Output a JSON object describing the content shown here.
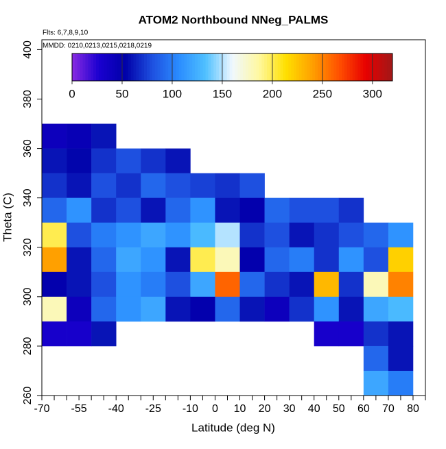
{
  "chart_data": {
    "type": "heatmap",
    "title": "ATOM2 Northbound NNeg_PALMS",
    "annotations": [
      "Flts: 6,7,8,9,10",
      "MMDD: 0210,0213,0215,0218,0219"
    ],
    "xlabel": "Latitude (deg N)",
    "ylabel": "Theta (C)",
    "xlim": [
      -70,
      85
    ],
    "ylim": [
      260,
      404
    ],
    "xticks": [
      -70,
      -55,
      -40,
      -25,
      -10,
      0,
      10,
      20,
      30,
      40,
      50,
      60,
      70,
      80
    ],
    "xminorticks": [
      -65,
      -60,
      -50,
      -45,
      -35,
      -30,
      -20,
      -15,
      -5,
      5,
      15,
      25,
      35,
      45,
      55,
      65,
      75,
      85
    ],
    "yticks": [
      260,
      280,
      300,
      320,
      340,
      360,
      380,
      400
    ],
    "x_edges": [
      -70,
      -60,
      -50,
      -40,
      -30,
      -20,
      -10,
      0,
      10,
      20,
      30,
      40,
      50,
      60,
      70,
      80
    ],
    "y_edges": [
      370,
      360,
      350,
      340,
      330,
      320,
      310,
      300,
      290,
      280,
      270,
      260
    ],
    "z": [
      [
        40,
        45,
        60,
        null,
        null,
        null,
        null,
        null,
        null,
        null,
        null,
        null,
        null,
        null,
        null
      ],
      [
        60,
        55,
        70,
        80,
        70,
        60,
        null,
        null,
        null,
        null,
        null,
        null,
        null,
        null,
        null
      ],
      [
        70,
        60,
        80,
        70,
        90,
        80,
        75,
        70,
        80,
        null,
        null,
        null,
        null,
        null,
        null
      ],
      [
        90,
        110,
        70,
        80,
        60,
        90,
        110,
        60,
        50,
        90,
        80,
        80,
        70,
        null,
        null
      ],
      [
        200,
        80,
        100,
        110,
        120,
        110,
        130,
        150,
        70,
        80,
        60,
        70,
        80,
        90,
        110
      ],
      [
        240,
        60,
        90,
        120,
        110,
        60,
        200,
        180,
        50,
        90,
        100,
        70,
        110,
        80,
        220
      ],
      [
        50,
        60,
        80,
        110,
        100,
        80,
        120,
        260,
        90,
        70,
        60,
        230,
        70,
        180,
        250
      ],
      [
        180,
        40,
        90,
        110,
        120,
        60,
        50,
        90,
        60,
        40,
        70,
        110,
        60,
        120,
        130
      ],
      [
        30,
        30,
        60,
        null,
        null,
        null,
        null,
        null,
        null,
        null,
        null,
        30,
        30,
        70,
        60
      ],
      [
        null,
        null,
        null,
        null,
        null,
        null,
        null,
        null,
        null,
        null,
        null,
        null,
        null,
        90,
        60
      ],
      [
        null,
        null,
        null,
        null,
        null,
        null,
        null,
        null,
        null,
        null,
        null,
        null,
        null,
        120,
        100
      ]
    ],
    "colorbar": {
      "range": [
        0,
        320
      ],
      "ticks": [
        0,
        50,
        100,
        150,
        200,
        250,
        300
      ],
      "colors": [
        "#8a2be2",
        "#1a00d0",
        "#0000a8",
        "#1e50e0",
        "#2a8cff",
        "#4fc0ff",
        "#f0f8ff",
        "#fff8a0",
        "#ffe000",
        "#ffa000",
        "#ff5000",
        "#e80000",
        "#a01818"
      ]
    }
  }
}
